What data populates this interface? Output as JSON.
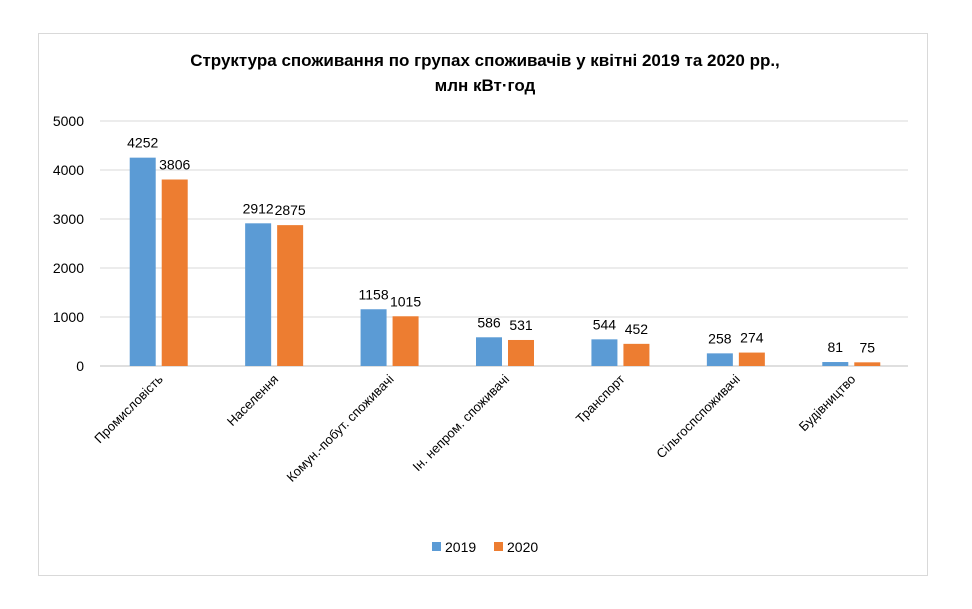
{
  "chart_data": {
    "type": "bar",
    "title_lines": [
      "Структура споживання по групах споживачів у квітні 2019 та 2020 рр.,",
      "млн кВт·год"
    ],
    "categories": [
      "Промисловість",
      "Населення",
      "Комун.-побут. споживачі",
      "Ін. непром. споживачі",
      "Транспорт",
      "Сільгоспспоживачі",
      "Будівництво"
    ],
    "series": [
      {
        "name": "2019",
        "color": "#5B9BD5",
        "values": [
          4252,
          2912,
          1158,
          586,
          544,
          258,
          81
        ]
      },
      {
        "name": "2020",
        "color": "#ED7D31",
        "values": [
          3806,
          2875,
          1015,
          531,
          452,
          274,
          75
        ]
      }
    ],
    "ylim": [
      0,
      5000
    ],
    "yticks": [
      0,
      1000,
      2000,
      3000,
      4000,
      5000
    ],
    "grid": true,
    "data_labels": true,
    "legend": "bottom",
    "xlabel": "",
    "ylabel": ""
  }
}
